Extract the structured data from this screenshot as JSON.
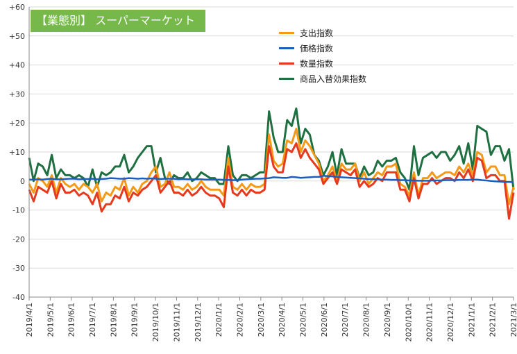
{
  "chart_data": {
    "type": "line",
    "title": "【業態別】 スーパーマーケット",
    "xlabel": "",
    "ylabel": "",
    "ylim": [
      -40,
      60
    ],
    "ytick_labels": [
      "+60",
      "+50",
      "+40",
      "+30",
      "+20",
      "+10",
      "0",
      "-10",
      "-20",
      "-30",
      "-40"
    ],
    "ytick_values": [
      60,
      50,
      40,
      30,
      20,
      10,
      0,
      -10,
      -20,
      -30,
      -40
    ],
    "x_tick_labels": [
      "2019/4/1",
      "2019/5/1",
      "2019/6/1",
      "2019/7/1",
      "2019/8/1",
      "2019/9/1",
      "2019/10/1",
      "2019/11/1",
      "2019/12/1",
      "2020/1/1",
      "2020/2/1",
      "2020/3/1",
      "2020/4/1",
      "2020/5/1",
      "2020/6/1",
      "2020/7/1",
      "2020/8/1",
      "2020/9/1",
      "2020/10/1",
      "2020/11/1",
      "2020/12/1",
      "2021/1/1",
      "2021/2/1",
      "2021/3/1"
    ],
    "x_range_weeks": [
      0,
      103
    ],
    "series": [
      {
        "name": "支出指数",
        "color": "#f59a16",
        "values": [
          -1,
          -4,
          1,
          0,
          -2,
          2,
          -4,
          1,
          -1,
          -2,
          -1,
          -3,
          -1,
          -2,
          -4,
          -1,
          -7,
          -4,
          -5,
          -2,
          -3,
          1,
          -5,
          -2,
          -4,
          -1,
          0,
          3,
          5,
          -2,
          -1,
          3,
          -2,
          -2,
          -3,
          -1,
          -3,
          -2,
          0,
          -2,
          -3,
          -3,
          -3,
          -5,
          8,
          -2,
          -3,
          -1,
          -3,
          -1,
          -2,
          -2,
          -1,
          16,
          7,
          5,
          6,
          14,
          13,
          18,
          10,
          14,
          12,
          9,
          6,
          0,
          2,
          5,
          0,
          6,
          4,
          4,
          6,
          0,
          3,
          -1,
          1,
          3,
          2,
          5,
          5,
          6,
          -1,
          -2,
          -5,
          3,
          -5,
          1,
          1,
          3,
          1,
          2,
          3,
          3,
          2,
          5,
          3,
          6,
          2,
          10,
          9,
          3,
          5,
          5,
          2,
          2,
          -8,
          -2
        ]
      },
      {
        "name": "価格指数",
        "color": "#1a5fbd",
        "values": [
          0.5,
          0.5,
          0.6,
          0.5,
          0.7,
          0.8,
          0.6,
          0.6,
          0.7,
          0.8,
          0.8,
          0.6,
          0.7,
          0.7,
          0.8,
          0.6,
          0.7,
          0.8,
          1,
          0.9,
          0.8,
          0.8,
          1,
          0.9,
          0.8,
          0.9,
          0.8,
          0.9,
          0.8,
          0.7,
          0.8,
          0.8,
          0.8,
          0.6,
          0.7,
          0.6,
          0.6,
          0.6,
          0.6,
          0.5,
          0.5,
          0.5,
          0.5,
          0.4,
          0.4,
          0.3,
          0.3,
          0.5,
          0.6,
          0.7,
          0.8,
          0.8,
          0.9,
          1,
          1.3,
          1.2,
          1.1,
          1.1,
          1.4,
          1.3,
          1.1,
          1.2,
          1.3,
          1.4,
          1.4,
          1.8,
          1.7,
          1.6,
          1.4,
          1.3,
          1.2,
          1.1,
          1,
          0.9,
          0.8,
          0.7,
          0.6,
          0.6,
          0.5,
          0.5,
          0.4,
          0.4,
          0.3,
          0.3,
          0.2,
          0.2,
          0.1,
          0.1,
          0.1,
          0.2,
          0.2,
          0.2,
          0.3,
          0.3,
          0.3,
          0.4,
          0.4,
          0.4,
          0.5,
          0.5,
          0.3,
          0.2,
          0,
          -0.1,
          -0.2,
          -0.3,
          -0.3,
          -0.4
        ]
      },
      {
        "name": "数量指数",
        "color": "#e63a1e",
        "values": [
          -3,
          -7,
          -2,
          -3,
          -4,
          0,
          -6,
          -1,
          -4,
          -4,
          -3,
          -5,
          -4,
          -5,
          -8,
          -4,
          -10.5,
          -8,
          -8,
          -5,
          -6,
          -2,
          -7,
          -4,
          -5,
          -3,
          -2,
          0,
          2,
          -4,
          -2,
          0,
          -4,
          -4,
          -5,
          -3,
          -5,
          -4,
          -2,
          -4,
          -5,
          -5,
          -6,
          -9,
          5,
          -4,
          -5,
          -3,
          -5,
          -3,
          -4,
          -4,
          -3,
          12,
          5,
          3,
          3,
          11,
          10,
          13,
          8,
          11,
          8,
          6,
          4,
          -1,
          1,
          3,
          -1,
          4,
          3,
          2,
          4,
          -2,
          0,
          -2,
          -1,
          1,
          0,
          3,
          3,
          3,
          -3,
          -3,
          -7,
          1,
          -6,
          -1,
          -1,
          1,
          -1,
          0,
          1,
          1,
          0,
          3,
          1,
          4,
          0,
          8,
          7,
          1,
          2,
          2,
          0,
          0,
          -13,
          -4
        ]
      },
      {
        "name": "商品入替効果指数",
        "color": "#1e7040",
        "values": [
          8,
          0,
          6,
          5,
          2,
          9,
          1,
          4,
          2,
          2,
          1,
          2,
          1,
          -2,
          4,
          -2,
          3,
          2,
          3,
          5,
          5,
          9,
          3,
          5,
          8,
          10,
          12,
          12,
          3,
          8,
          1,
          -1,
          2,
          1,
          1,
          3,
          0,
          1,
          3,
          2,
          1,
          1,
          -1,
          -1,
          12,
          2,
          0,
          2,
          2,
          1,
          2,
          3,
          3,
          24,
          15,
          10,
          10,
          21,
          19,
          25,
          13,
          18,
          16,
          9,
          7,
          2,
          5,
          10,
          2,
          11,
          6,
          6,
          6,
          1,
          5,
          2,
          3,
          7,
          5,
          7,
          7,
          8,
          3,
          1,
          -3,
          12,
          2,
          8,
          9,
          10,
          8,
          10,
          10,
          7,
          9,
          12,
          6,
          13,
          4,
          19,
          18,
          17,
          9,
          12,
          12,
          7,
          11,
          -3
        ]
      }
    ]
  }
}
